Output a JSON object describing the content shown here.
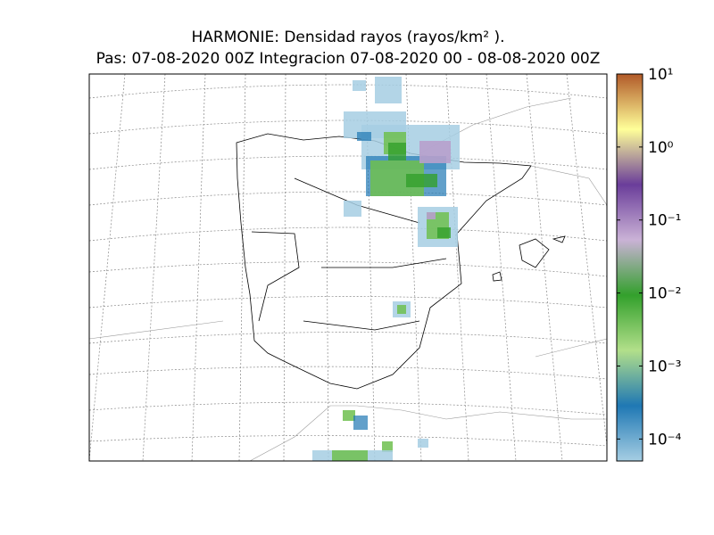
{
  "map": {
    "title": "HARMONIE: Densidad rayos  (rayos/km² ).",
    "subtitle": "Pas: 07-08-2020 00Z Integracion 07-08-2020 00 - 08-08-2020 00Z",
    "colorbar": {
      "scale": "log",
      "lim": [
        5e-05,
        10
      ],
      "ticks": [
        {
          "value": 10,
          "label": "10¹"
        },
        {
          "value": 1,
          "label": "10⁰"
        },
        {
          "value": 0.1,
          "label": "10⁻¹"
        },
        {
          "value": 0.01,
          "label": "10⁻²"
        },
        {
          "value": 0.001,
          "label": "10⁻³"
        },
        {
          "value": 0.0001,
          "label": "10⁻⁴"
        }
      ],
      "colors": [
        "#a6cee3",
        "#1f78b4",
        "#b2df8a",
        "#33a02c",
        "#cab2d6",
        "#6a3d9a",
        "#ffff99",
        "#b15928"
      ]
    }
  }
}
